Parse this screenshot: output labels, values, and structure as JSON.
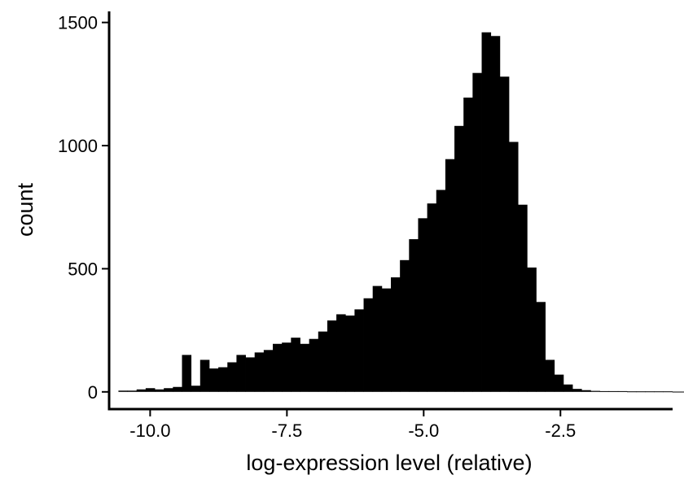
{
  "chart_data": {
    "type": "bar",
    "title": "",
    "xlabel": "log-expression level (relative)",
    "ylabel": "count",
    "bin_width": 0.166,
    "bins_start": -10.58,
    "xlim": [
      -10.75,
      -0.45
    ],
    "ylim": [
      -70,
      1545
    ],
    "x_ticks": [
      -10.0,
      -7.5,
      -5.0,
      -2.5
    ],
    "x_tick_labels": [
      "-10.0",
      "-7.5",
      "-5.0",
      "-2.5"
    ],
    "y_ticks": [
      0,
      500,
      1000,
      1500
    ],
    "y_tick_labels": [
      "0",
      "500",
      "1000",
      "1500"
    ],
    "values": [
      5,
      5,
      10,
      15,
      10,
      15,
      20,
      150,
      25,
      130,
      95,
      100,
      120,
      150,
      140,
      160,
      170,
      195,
      200,
      220,
      195,
      215,
      245,
      290,
      315,
      310,
      335,
      380,
      430,
      420,
      465,
      535,
      620,
      705,
      765,
      820,
      945,
      1080,
      1195,
      1295,
      1460,
      1445,
      1280,
      1015,
      760,
      505,
      365,
      130,
      70,
      30,
      12,
      7,
      4,
      3,
      3,
      3,
      2,
      2,
      2,
      2,
      2,
      1,
      1,
      1,
      1,
      1
    ],
    "bar_color": "#000000",
    "grid": false,
    "legend": "none"
  }
}
